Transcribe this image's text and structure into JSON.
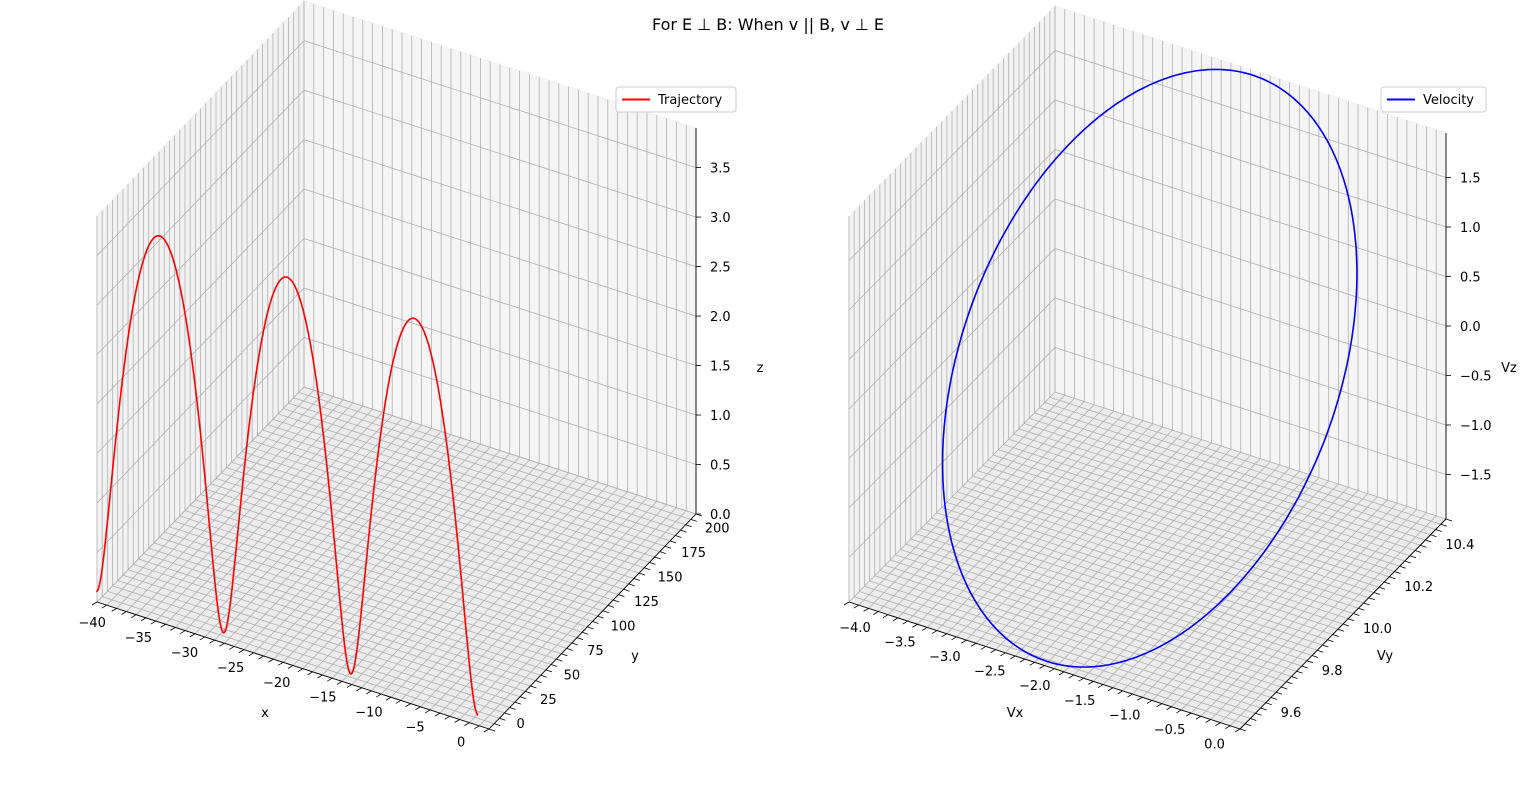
{
  "figure": {
    "title": "For E ⊥ B: When v || B, v ⊥ E"
  },
  "chart_data": [
    {
      "type": "line3d",
      "legend": {
        "label": "Trajectory",
        "placement": "top-right"
      },
      "color": "#ff0000",
      "xlabel": "x",
      "ylabel": "y",
      "zlabel": "z",
      "xlim": [
        -41,
        1.5
      ],
      "ylim": [
        -8,
        212
      ],
      "zlim": [
        0,
        3.9
      ],
      "xticks": [
        -40,
        -35,
        -30,
        -25,
        -20,
        -15,
        -10,
        -5,
        0
      ],
      "yticks": [
        0,
        25,
        50,
        75,
        100,
        125,
        150,
        175,
        200
      ],
      "zticks": [
        0.0,
        0.5,
        1.0,
        1.5,
        2.0,
        2.5,
        3.0,
        3.5
      ],
      "grid": true,
      "curve": {
        "kind": "cycloid-helix",
        "loops": 3,
        "loop_x_span": -13.8,
        "y_range": [
          0,
          200
        ],
        "z_range": [
          0,
          3.8
        ]
      }
    },
    {
      "type": "line3d",
      "legend": {
        "label": "Velocity",
        "placement": "top-right"
      },
      "color": "#0000ff",
      "xlabel": "Vx",
      "ylabel": "Vy",
      "zlabel": "Vz",
      "xlim": [
        -4.2,
        0.15
      ],
      "ylim": [
        9.5,
        10.5
      ],
      "zlim": [
        -1.95,
        1.95
      ],
      "xticks": [
        -4.0,
        -3.5,
        -3.0,
        -2.5,
        -2.0,
        -1.5,
        -1.0,
        -0.5,
        0.0
      ],
      "yticks": [
        9.6,
        9.8,
        10.0,
        10.2,
        10.4
      ],
      "zticks": [
        -1.5,
        -1.0,
        -0.5,
        0.0,
        0.5,
        1.0,
        1.5
      ],
      "grid": true,
      "curve": {
        "kind": "ellipse",
        "center": [
          -2.0,
          10.0,
          0.0
        ],
        "vx_amplitude": 2.0,
        "vy_amplitude": 0.5,
        "vz_amplitude": 1.9
      }
    }
  ]
}
